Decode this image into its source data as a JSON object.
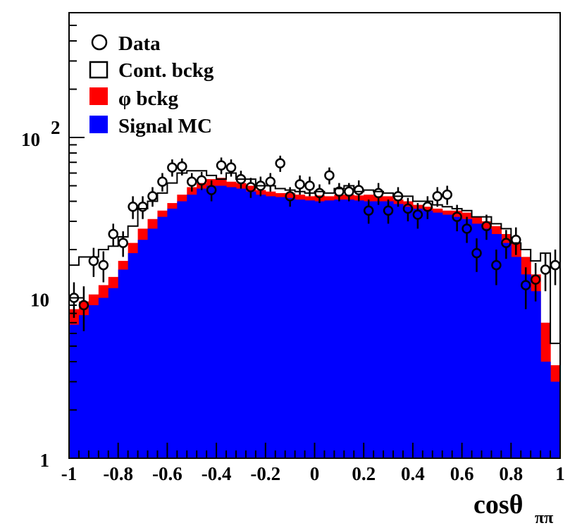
{
  "chart_data": {
    "type": "bar",
    "x_label_base": "cos",
    "x_label_theta": "θ",
    "x_label_sub": "ππ",
    "ylog": true,
    "xlim": [
      -1,
      1
    ],
    "ylim": [
      1,
      600
    ],
    "x_ticks": [
      {
        "v": -1,
        "label": "-1"
      },
      {
        "v": -0.8,
        "label": "-0.8"
      },
      {
        "v": -0.6,
        "label": "-0.6"
      },
      {
        "v": -0.4,
        "label": "-0.4"
      },
      {
        "v": -0.2,
        "label": "-0.2"
      },
      {
        "v": 0,
        "label": "0"
      },
      {
        "v": 0.2,
        "label": "0.2"
      },
      {
        "v": 0.4,
        "label": "0.4"
      },
      {
        "v": 0.6,
        "label": "0.6"
      },
      {
        "v": 0.8,
        "label": "0.8"
      },
      {
        "v": 1,
        "label": "1"
      }
    ],
    "y_ticks": [
      {
        "v": 1,
        "label": "1",
        "sup": ""
      },
      {
        "v": 10,
        "label": "10",
        "sup": ""
      },
      {
        "v": 100,
        "label": "10",
        "sup": "2"
      }
    ],
    "legend": [
      {
        "label": "Data",
        "marker": "circle"
      },
      {
        "label": "Cont. bckg",
        "marker": "open-square"
      },
      {
        "label": "φ bckg",
        "marker": "filled-square",
        "color": "#ff0000"
      },
      {
        "label": "Signal MC",
        "marker": "filled-square",
        "color": "#0000ff"
      }
    ],
    "colors": {
      "signal": "#0000ff",
      "phi": "#ff0000",
      "cont": "#000000",
      "data": "#000000"
    },
    "bin_width": 0.04,
    "bin_edges_start": -1.0,
    "signal": [
      6.8,
      7.8,
      9.0,
      10.0,
      11.5,
      15,
      19,
      23,
      27,
      32,
      36,
      40,
      44,
      48,
      50,
      50,
      49,
      48,
      46,
      44,
      43,
      42.5,
      42,
      41,
      40.5,
      40,
      40.5,
      41,
      41,
      40.5,
      40,
      40,
      40,
      38.5,
      37,
      36,
      35,
      34,
      33,
      32,
      31,
      29,
      27,
      25,
      22,
      18,
      14,
      11,
      4.0,
      3.0
    ],
    "phi_total": [
      8.5,
      9.5,
      10.5,
      12.0,
      13.5,
      17,
      22,
      27,
      31,
      35,
      39,
      44,
      49,
      52,
      55,
      56,
      53,
      52,
      50,
      47,
      46,
      45,
      45,
      44,
      43,
      43.5,
      43,
      44,
      44,
      43.5,
      44,
      43,
      43,
      41,
      40,
      38,
      37,
      36,
      35,
      35,
      34,
      32,
      30,
      28,
      25,
      22,
      18,
      14,
      7.0,
      3.8
    ],
    "cont_total": [
      16,
      18,
      18,
      20,
      21,
      24,
      28,
      36,
      40,
      45,
      52,
      60,
      62,
      62,
      58,
      55,
      60,
      55,
      55,
      50,
      50,
      48,
      47,
      46,
      45,
      46,
      45,
      48,
      50,
      46,
      47,
      46,
      45,
      43,
      43,
      40,
      40,
      38,
      37,
      36,
      35,
      32,
      32,
      29,
      27,
      22,
      20,
      17,
      19,
      5.2
    ],
    "data_points": [
      {
        "x": -0.98,
        "y": 10,
        "err": 2.5
      },
      {
        "x": -0.94,
        "y": 9,
        "err": 2.8
      },
      {
        "x": -0.9,
        "y": 17,
        "err": 3.5
      },
      {
        "x": -0.86,
        "y": 16,
        "err": 3.5
      },
      {
        "x": -0.82,
        "y": 25,
        "err": 4
      },
      {
        "x": -0.78,
        "y": 22,
        "err": 4
      },
      {
        "x": -0.74,
        "y": 37,
        "err": 6
      },
      {
        "x": -0.7,
        "y": 37,
        "err": 6
      },
      {
        "x": -0.66,
        "y": 43,
        "err": 6
      },
      {
        "x": -0.62,
        "y": 53,
        "err": 7
      },
      {
        "x": -0.58,
        "y": 65,
        "err": 8
      },
      {
        "x": -0.54,
        "y": 66,
        "err": 8
      },
      {
        "x": -0.5,
        "y": 53,
        "err": 7
      },
      {
        "x": -0.46,
        "y": 54,
        "err": 7
      },
      {
        "x": -0.42,
        "y": 47,
        "err": 7
      },
      {
        "x": -0.38,
        "y": 67,
        "err": 8
      },
      {
        "x": -0.34,
        "y": 65,
        "err": 8
      },
      {
        "x": -0.3,
        "y": 55,
        "err": 7
      },
      {
        "x": -0.26,
        "y": 49,
        "err": 7
      },
      {
        "x": -0.22,
        "y": 50,
        "err": 7
      },
      {
        "x": -0.18,
        "y": 53,
        "err": 7
      },
      {
        "x": -0.14,
        "y": 69,
        "err": 8
      },
      {
        "x": -0.1,
        "y": 43,
        "err": 6
      },
      {
        "x": -0.06,
        "y": 51,
        "err": 7
      },
      {
        "x": -0.02,
        "y": 50,
        "err": 7
      },
      {
        "x": 0.02,
        "y": 45,
        "err": 6
      },
      {
        "x": 0.06,
        "y": 58,
        "err": 7
      },
      {
        "x": 0.1,
        "y": 46,
        "err": 6
      },
      {
        "x": 0.14,
        "y": 46,
        "err": 6
      },
      {
        "x": 0.18,
        "y": 47,
        "err": 7
      },
      {
        "x": 0.22,
        "y": 35,
        "err": 6
      },
      {
        "x": 0.26,
        "y": 45,
        "err": 7
      },
      {
        "x": 0.3,
        "y": 35,
        "err": 6
      },
      {
        "x": 0.34,
        "y": 43,
        "err": 6
      },
      {
        "x": 0.38,
        "y": 36,
        "err": 6
      },
      {
        "x": 0.42,
        "y": 33,
        "err": 6
      },
      {
        "x": 0.46,
        "y": 37,
        "err": 6
      },
      {
        "x": 0.5,
        "y": 43,
        "err": 6
      },
      {
        "x": 0.54,
        "y": 44,
        "err": 6
      },
      {
        "x": 0.58,
        "y": 32,
        "err": 6
      },
      {
        "x": 0.62,
        "y": 27,
        "err": 5
      },
      {
        "x": 0.66,
        "y": 19,
        "err": 4.5
      },
      {
        "x": 0.7,
        "y": 28,
        "err": 5
      },
      {
        "x": 0.74,
        "y": 16,
        "err": 4
      },
      {
        "x": 0.78,
        "y": 22,
        "err": 4.5
      },
      {
        "x": 0.82,
        "y": 23,
        "err": 4.5
      },
      {
        "x": 0.86,
        "y": 12,
        "err": 3.5
      },
      {
        "x": 0.9,
        "y": 13,
        "err": 3.5
      },
      {
        "x": 0.94,
        "y": 15,
        "err": 4
      },
      {
        "x": 0.98,
        "y": 16,
        "err": 4
      }
    ]
  }
}
